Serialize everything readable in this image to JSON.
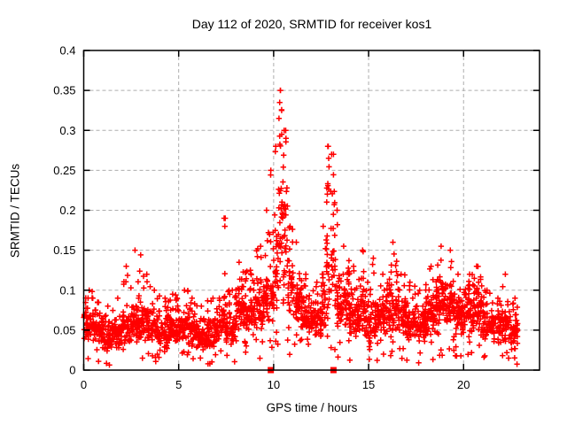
{
  "chart_data": {
    "type": "scatter",
    "title": "Day 112 of 2020, SRMTID for receiver kos1",
    "xlabel": "GPS time / hours",
    "ylabel": "SRMTID / TECUs",
    "xlim": [
      0,
      24
    ],
    "ylim": [
      0,
      0.4
    ],
    "xticks": [
      0,
      5,
      10,
      15,
      20
    ],
    "xtick_labels": [
      "0",
      "5",
      "10",
      "15",
      "20"
    ],
    "yticks": [
      0,
      0.05,
      0.1,
      0.15,
      0.2,
      0.25,
      0.3,
      0.35,
      0.4
    ],
    "ytick_labels": [
      "0",
      "0.05",
      "0.1",
      "0.15",
      "0.2",
      "0.25",
      "0.3",
      "0.35",
      "0.4"
    ],
    "grid": true,
    "grid_color": "#adadad",
    "background": "#ffffff",
    "marker": "plus",
    "marker_color": "#ff0000",
    "series_name": "SRMTID",
    "time_span_hours": [
      0.0,
      22.85
    ],
    "density_bins_comment": "Dense scatter (~2500 pts) summarized per time bin read off the plot: [t_start, t_end, typical_low, typical_high, bin_max, approx_count]",
    "density_bins": [
      [
        0.0,
        0.5,
        0.035,
        0.09,
        0.1,
        55
      ],
      [
        0.5,
        1.0,
        0.03,
        0.075,
        0.085,
        52
      ],
      [
        1.0,
        1.5,
        0.02,
        0.06,
        0.08,
        50
      ],
      [
        1.5,
        2.0,
        0.025,
        0.07,
        0.09,
        50
      ],
      [
        2.0,
        2.5,
        0.03,
        0.08,
        0.13,
        55
      ],
      [
        2.5,
        3.0,
        0.03,
        0.09,
        0.15,
        55
      ],
      [
        3.0,
        3.5,
        0.03,
        0.09,
        0.12,
        55
      ],
      [
        3.5,
        4.0,
        0.025,
        0.08,
        0.1,
        52
      ],
      [
        4.0,
        4.5,
        0.02,
        0.07,
        0.09,
        50
      ],
      [
        4.5,
        5.0,
        0.025,
        0.075,
        0.095,
        50
      ],
      [
        5.0,
        5.5,
        0.03,
        0.08,
        0.1,
        50
      ],
      [
        5.5,
        6.0,
        0.025,
        0.07,
        0.09,
        48
      ],
      [
        6.0,
        6.5,
        0.02,
        0.06,
        0.08,
        48
      ],
      [
        6.5,
        7.0,
        0.025,
        0.065,
        0.09,
        48
      ],
      [
        7.0,
        7.25,
        0.03,
        0.075,
        0.09,
        24
      ],
      [
        7.25,
        7.5,
        0.035,
        0.09,
        0.19,
        26
      ],
      [
        7.5,
        8.0,
        0.03,
        0.08,
        0.1,
        50
      ],
      [
        8.0,
        8.5,
        0.04,
        0.1,
        0.135,
        55
      ],
      [
        8.5,
        9.0,
        0.04,
        0.1,
        0.125,
        55
      ],
      [
        9.0,
        9.5,
        0.04,
        0.11,
        0.155,
        55
      ],
      [
        9.5,
        9.75,
        0.05,
        0.13,
        0.2,
        28
      ],
      [
        9.75,
        10.0,
        0.05,
        0.15,
        0.25,
        28
      ],
      [
        10.0,
        10.25,
        0.06,
        0.2,
        0.28,
        30
      ],
      [
        10.25,
        10.5,
        0.08,
        0.28,
        0.35,
        32
      ],
      [
        10.5,
        10.75,
        0.07,
        0.25,
        0.3,
        30
      ],
      [
        10.75,
        11.0,
        0.06,
        0.15,
        0.18,
        28
      ],
      [
        11.0,
        11.5,
        0.05,
        0.12,
        0.16,
        55
      ],
      [
        11.5,
        12.0,
        0.04,
        0.09,
        0.12,
        52
      ],
      [
        12.0,
        12.5,
        0.035,
        0.09,
        0.11,
        52
      ],
      [
        12.5,
        12.75,
        0.05,
        0.12,
        0.18,
        26
      ],
      [
        12.75,
        13.0,
        0.05,
        0.2,
        0.28,
        28
      ],
      [
        13.0,
        13.25,
        0.05,
        0.22,
        0.27,
        28
      ],
      [
        13.25,
        13.5,
        0.05,
        0.13,
        0.2,
        26
      ],
      [
        13.5,
        14.0,
        0.04,
        0.12,
        0.155,
        52
      ],
      [
        14.0,
        14.5,
        0.035,
        0.1,
        0.13,
        52
      ],
      [
        14.5,
        15.0,
        0.04,
        0.11,
        0.15,
        52
      ],
      [
        15.0,
        15.5,
        0.03,
        0.09,
        0.14,
        50
      ],
      [
        15.5,
        16.0,
        0.035,
        0.1,
        0.12,
        50
      ],
      [
        16.0,
        16.5,
        0.04,
        0.11,
        0.16,
        55
      ],
      [
        16.5,
        17.0,
        0.04,
        0.1,
        0.12,
        52
      ],
      [
        17.0,
        17.5,
        0.03,
        0.09,
        0.11,
        52
      ],
      [
        17.5,
        18.0,
        0.03,
        0.08,
        0.1,
        50
      ],
      [
        18.0,
        18.5,
        0.04,
        0.1,
        0.13,
        55
      ],
      [
        18.5,
        19.0,
        0.05,
        0.13,
        0.155,
        58
      ],
      [
        19.0,
        19.5,
        0.05,
        0.12,
        0.15,
        55
      ],
      [
        19.5,
        20.0,
        0.04,
        0.1,
        0.12,
        55
      ],
      [
        20.0,
        20.5,
        0.04,
        0.1,
        0.12,
        55
      ],
      [
        20.5,
        21.0,
        0.04,
        0.11,
        0.13,
        55
      ],
      [
        21.0,
        21.5,
        0.035,
        0.08,
        0.1,
        50
      ],
      [
        21.5,
        22.0,
        0.03,
        0.08,
        0.09,
        48
      ],
      [
        22.0,
        22.5,
        0.03,
        0.08,
        0.12,
        50
      ],
      [
        22.5,
        22.85,
        0.02,
        0.075,
        0.09,
        40
      ]
    ],
    "notable_points": [
      [
        10.35,
        0.35
      ],
      [
        10.32,
        0.335
      ],
      [
        10.42,
        0.325
      ],
      [
        10.28,
        0.315
      ],
      [
        10.55,
        0.3
      ],
      [
        10.65,
        0.29
      ],
      [
        12.85,
        0.28
      ],
      [
        13.05,
        0.27
      ],
      [
        12.9,
        0.265
      ],
      [
        7.45,
        0.19
      ],
      [
        7.43,
        0.18
      ]
    ],
    "axis_markers": {
      "shape": "filled-square",
      "color": "#ff0000",
      "value": 0,
      "times": [
        9.85,
        13.15
      ]
    }
  }
}
